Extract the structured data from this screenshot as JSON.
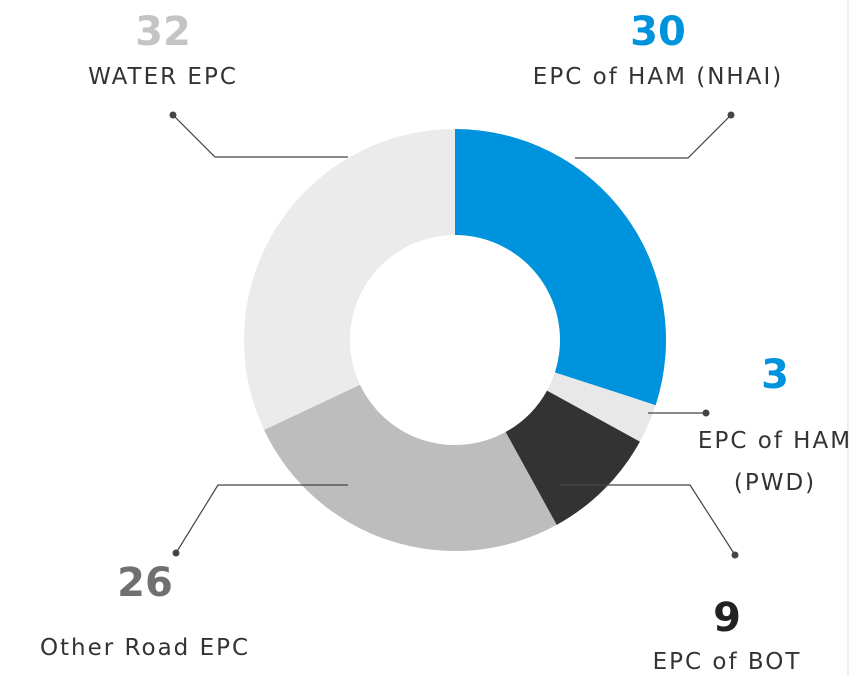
{
  "chart_data": {
    "type": "donut",
    "categories": [
      "EPC of HAM (NHAI)",
      "EPC of HAM (PWD)",
      "EPC of BOT",
      "Other Road EPC",
      "WATER EPC"
    ],
    "values": [
      30,
      3,
      9,
      26,
      32
    ],
    "colors": [
      "#0093dd",
      "#e8e8e8",
      "#333333",
      "#bdbdbd",
      "#ebebeb"
    ],
    "label_colors": [
      "#0093dd",
      "#0093dd",
      "#222222",
      "#707070",
      "#c4c4c4"
    ]
  }
}
